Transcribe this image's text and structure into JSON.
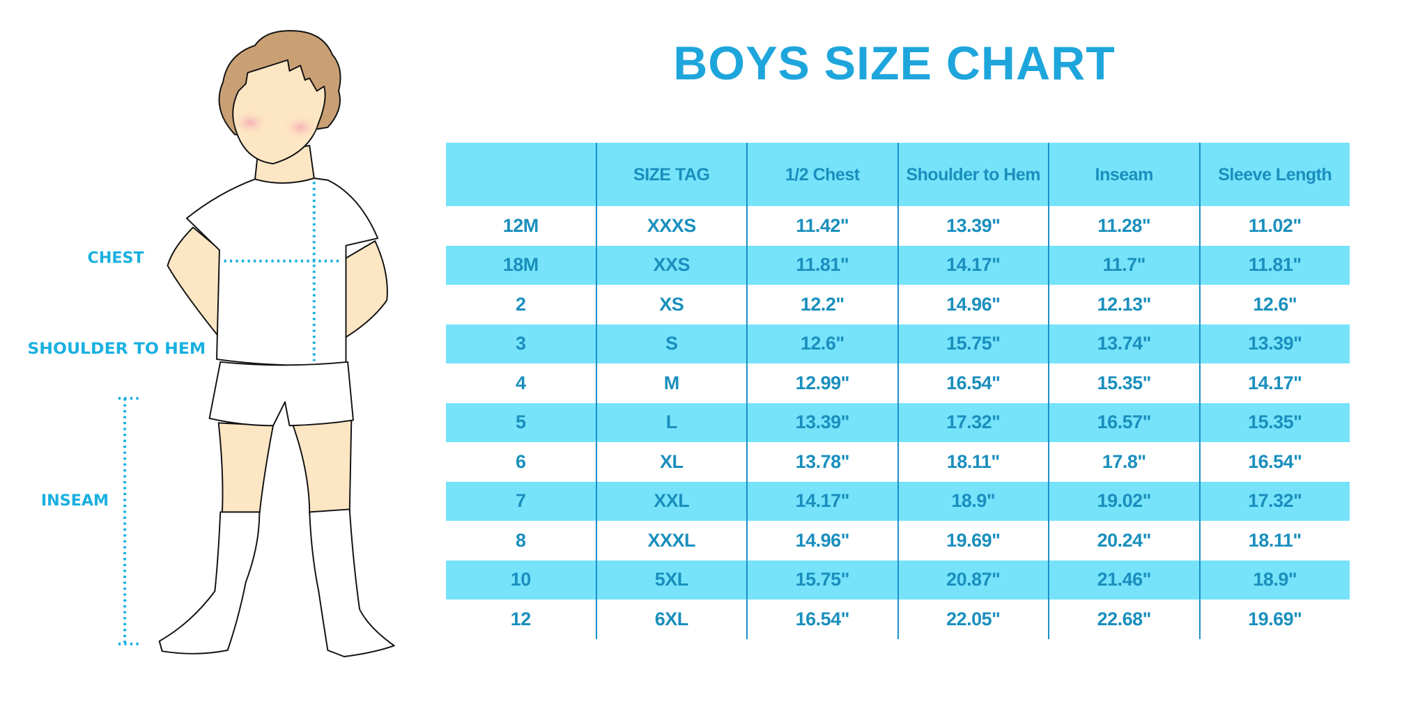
{
  "title": "BOYS SIZE CHART",
  "colors": {
    "title": "#1ea6dc",
    "header_bg": "#76e3fb",
    "text": "#1a8fbd",
    "measure_line": "#1ab0e0"
  },
  "figure": {
    "labels": {
      "chest": "CHEST",
      "shoulder_to_hem": "SHOULDER TO HEM",
      "inseam": "INSEAM"
    }
  },
  "table": {
    "headers": [
      "",
      "SIZE TAG",
      "1/2 Chest",
      "Shoulder to Hem",
      "Inseam",
      "Sleeve Length"
    ],
    "rows": [
      [
        "12M",
        "XXXS",
        "11.42\"",
        "13.39\"",
        "11.28\"",
        "11.02\""
      ],
      [
        "18M",
        "XXS",
        "11.81\"",
        "14.17\"",
        "11.7\"",
        "11.81\""
      ],
      [
        "2",
        "XS",
        "12.2\"",
        "14.96\"",
        "12.13\"",
        "12.6\""
      ],
      [
        "3",
        "S",
        "12.6\"",
        "15.75\"",
        "13.74\"",
        "13.39\""
      ],
      [
        "4",
        "M",
        "12.99\"",
        "16.54\"",
        "15.35\"",
        "14.17\""
      ],
      [
        "5",
        "L",
        "13.39\"",
        "17.32\"",
        "16.57\"",
        "15.35\""
      ],
      [
        "6",
        "XL",
        "13.78\"",
        "18.11\"",
        "17.8\"",
        "16.54\""
      ],
      [
        "7",
        "XXL",
        "14.17\"",
        "18.9\"",
        "19.02\"",
        "17.32\""
      ],
      [
        "8",
        "XXXL",
        "14.96\"",
        "19.69\"",
        "20.24\"",
        "18.11\""
      ],
      [
        "10",
        "5XL",
        "15.75\"",
        "20.87\"",
        "21.46\"",
        "18.9\""
      ],
      [
        "12",
        "6XL",
        "16.54\"",
        "22.05\"",
        "22.68\"",
        "19.69\""
      ]
    ]
  }
}
